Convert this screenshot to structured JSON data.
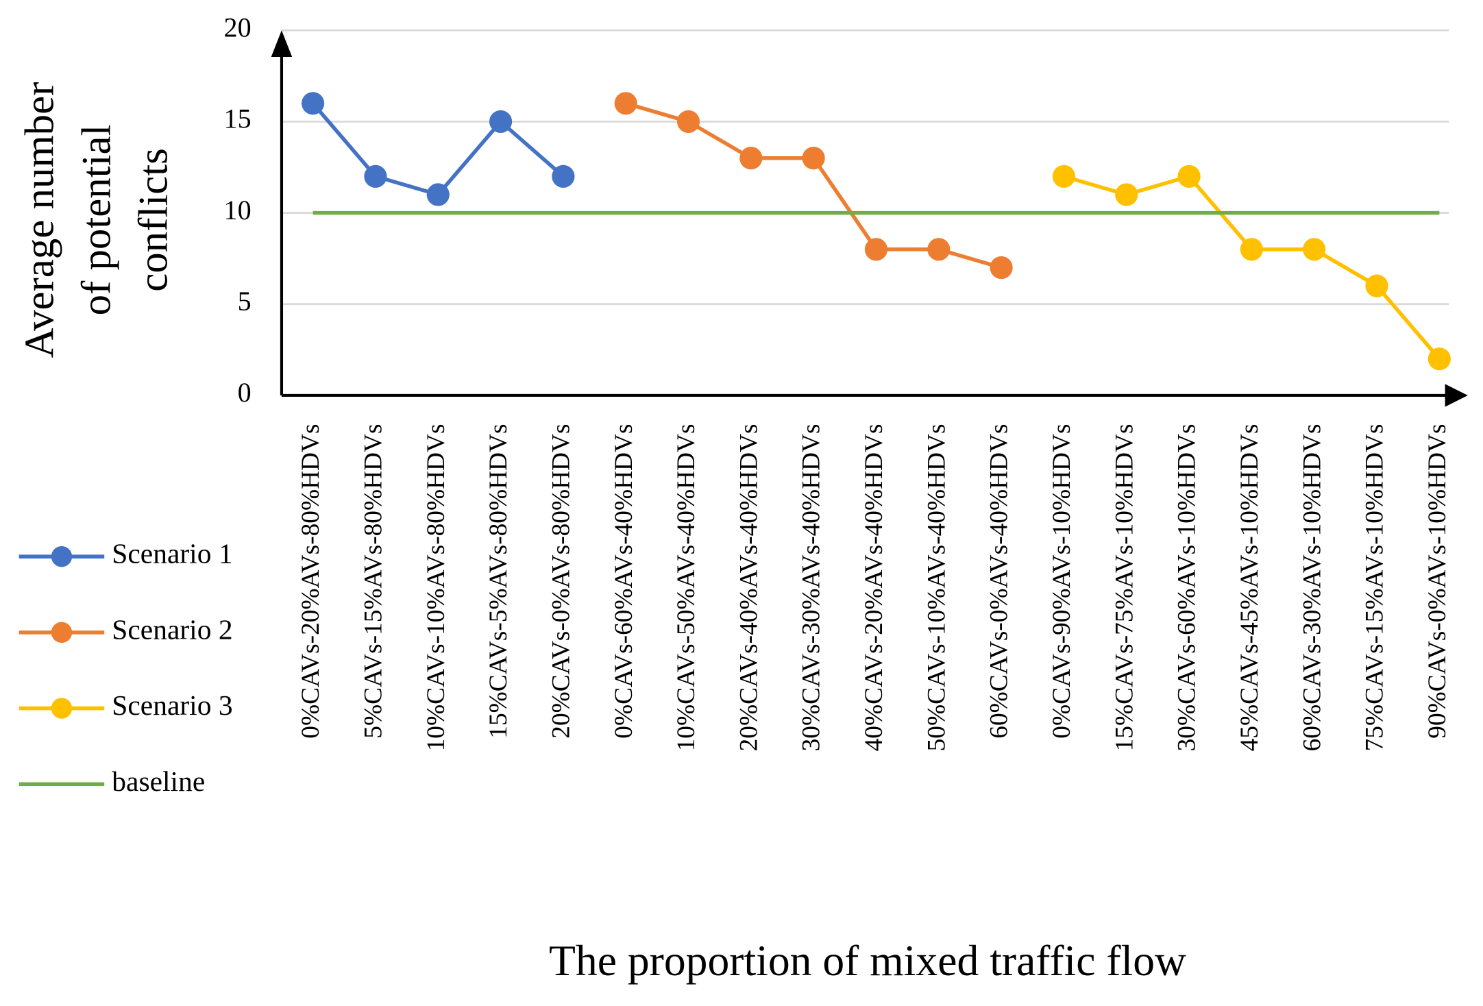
{
  "chart_data": {
    "type": "line",
    "y_label": [
      "Average number",
      "of potential",
      "conflicts"
    ],
    "x_label": "The proportion of mixed traffic flow",
    "categories": [
      "0%CAVs-20%AVs-80%HDVs",
      "5%CAVs-15%AVs-80%HDVs",
      "10%CAVs-10%AVs-80%HDVs",
      "15%CAVs-5%AVs-80%HDVs",
      "20%CAVs-0%AVs-80%HDVs",
      "0%CAVs-60%AVs-40%HDVs",
      "10%CAVs-50%AVs-40%HDVs",
      "20%CAVs-40%AVs-40%HDVs",
      "30%CAVs-30%AVs-40%HDVs",
      "40%CAVs-20%AVs-40%HDVs",
      "50%CAVs-10%AVs-40%HDVs",
      "60%CAVs-0%AVs-40%HDVs",
      "0%CAVs-90%AVs-10%HDVs",
      "15%CAVs-75%AVs-10%HDVs",
      "30%CAVs-60%AVs-10%HDVs",
      "45%CAVs-45%AVs-10%HDVs",
      "60%CAVs-30%AVs-10%HDVs",
      "75%CAVs-15%AVs-10%HDVs",
      "90%CAVs-0%AVs-10%HDVs"
    ],
    "series": [
      {
        "name": "Scenario 1",
        "color": "#4472c4",
        "markers": true,
        "values": [
          16,
          12,
          11,
          15,
          12,
          null,
          null,
          null,
          null,
          null,
          null,
          null,
          null,
          null,
          null,
          null,
          null,
          null,
          null
        ]
      },
      {
        "name": "Scenario 2",
        "color": "#ed7d31",
        "markers": true,
        "values": [
          null,
          null,
          null,
          null,
          null,
          16,
          15,
          13,
          13,
          8,
          8,
          7,
          null,
          null,
          null,
          null,
          null,
          null,
          null
        ]
      },
      {
        "name": "Scenario 3",
        "color": "#ffc000",
        "markers": true,
        "values": [
          null,
          null,
          null,
          null,
          null,
          null,
          null,
          null,
          null,
          null,
          null,
          null,
          12,
          11,
          12,
          8,
          8,
          6,
          2
        ]
      },
      {
        "name": "baseline",
        "color": "#70ad47",
        "markers": false,
        "values": [
          10,
          10,
          10,
          10,
          10,
          10,
          10,
          10,
          10,
          10,
          10,
          10,
          10,
          10,
          10,
          10,
          10,
          10,
          10
        ]
      }
    ],
    "ylim": [
      0,
      20
    ],
    "yticks": [
      0,
      5,
      10,
      15,
      20
    ],
    "grid": true,
    "legend": "left"
  }
}
